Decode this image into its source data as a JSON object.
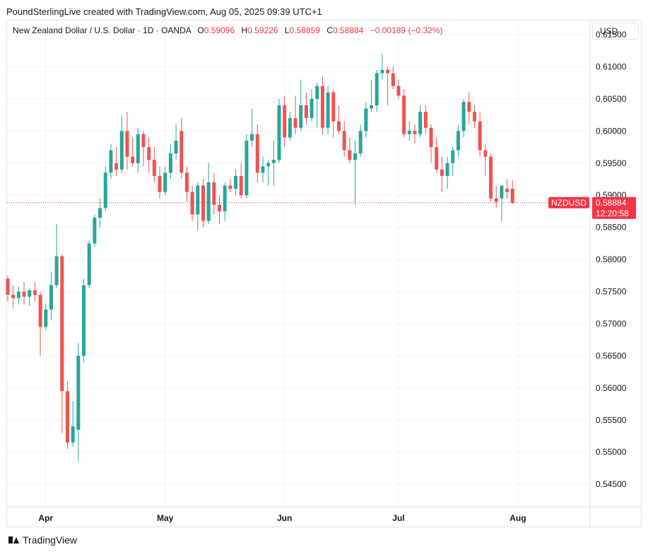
{
  "header": {
    "text": "PoundSterlingLive created with TradingView.com, Aug 05, 2025 09:39 UTC+1"
  },
  "legend": {
    "instrument": "New Zealand Dollar / U.S. Dollar · 1D · OANDA",
    "o_label": "O",
    "o_value": "0.59096",
    "h_label": "H",
    "h_value": "0.59226",
    "l_label": "L",
    "l_value": "0.58859",
    "c_label": "C",
    "c_value": "0.58884",
    "change": "−0.00189 (−0.32%)"
  },
  "currency_button": "USD",
  "footer": {
    "brand": "TradingView"
  },
  "colors": {
    "up": "#26a69a",
    "down": "#ef5350",
    "grid": "#f0f3fa",
    "axis_text": "#131722",
    "badge": "#f23645"
  },
  "chart_data": {
    "type": "candlestick",
    "symbol": "NZDUSD",
    "last_price": "0.58884",
    "countdown": "12:20:58",
    "y_axis": {
      "min": 0.5415,
      "max": 0.6172,
      "ticks": [
        "0.61500",
        "0.61000",
        "0.60500",
        "0.60000",
        "0.59500",
        "0.59000",
        "0.58500",
        "0.58000",
        "0.57500",
        "0.57000",
        "0.56500",
        "0.56000",
        "0.55500",
        "0.55000",
        "0.54500"
      ]
    },
    "x_axis": {
      "labels": [
        {
          "label": "Apr",
          "index": 7
        },
        {
          "label": "May",
          "index": 29
        },
        {
          "label": "Jun",
          "index": 51
        },
        {
          "label": "Jul",
          "index": 72
        },
        {
          "label": "Aug",
          "index": 94
        }
      ]
    },
    "ohlc": [
      [
        0.577,
        0.5775,
        0.5735,
        0.5745
      ],
      [
        0.5745,
        0.576,
        0.5725,
        0.574
      ],
      [
        0.574,
        0.5758,
        0.573,
        0.575
      ],
      [
        0.575,
        0.5765,
        0.573,
        0.5742
      ],
      [
        0.5742,
        0.5755,
        0.5728,
        0.5752
      ],
      [
        0.5752,
        0.5765,
        0.5735,
        0.5745
      ],
      [
        0.5745,
        0.575,
        0.565,
        0.5695
      ],
      [
        0.5695,
        0.573,
        0.569,
        0.5722
      ],
      [
        0.5722,
        0.578,
        0.5705,
        0.576
      ],
      [
        0.576,
        0.5855,
        0.5755,
        0.5805
      ],
      [
        0.5805,
        0.5808,
        0.553,
        0.5595
      ],
      [
        0.5595,
        0.561,
        0.5505,
        0.5515
      ],
      [
        0.5515,
        0.558,
        0.5508,
        0.554
      ],
      [
        0.5535,
        0.567,
        0.5485,
        0.565
      ],
      [
        0.565,
        0.577,
        0.564,
        0.576
      ],
      [
        0.576,
        0.583,
        0.5755,
        0.5825
      ],
      [
        0.5825,
        0.587,
        0.582,
        0.5865
      ],
      [
        0.5865,
        0.5895,
        0.585,
        0.588
      ],
      [
        0.588,
        0.5945,
        0.5875,
        0.5935
      ],
      [
        0.5935,
        0.598,
        0.5925,
        0.597
      ],
      [
        0.595,
        0.5975,
        0.593,
        0.594
      ],
      [
        0.594,
        0.6025,
        0.5935,
        0.6
      ],
      [
        0.6,
        0.603,
        0.594,
        0.596
      ],
      [
        0.596,
        0.599,
        0.5945,
        0.595
      ],
      [
        0.595,
        0.6005,
        0.5935,
        0.5995
      ],
      [
        0.5995,
        0.6,
        0.5945,
        0.5975
      ],
      [
        0.5975,
        0.599,
        0.5935,
        0.5955
      ],
      [
        0.5955,
        0.5975,
        0.592,
        0.593
      ],
      [
        0.593,
        0.5945,
        0.5895,
        0.5905
      ],
      [
        0.5905,
        0.5945,
        0.59,
        0.5935
      ],
      [
        0.5935,
        0.598,
        0.5925,
        0.5965
      ],
      [
        0.5965,
        0.601,
        0.5955,
        0.5985
      ],
      [
        0.6,
        0.602,
        0.5925,
        0.5935
      ],
      [
        0.5935,
        0.5945,
        0.589,
        0.5905
      ],
      [
        0.5905,
        0.5915,
        0.586,
        0.587
      ],
      [
        0.587,
        0.592,
        0.5845,
        0.5915
      ],
      [
        0.5915,
        0.5925,
        0.585,
        0.586
      ],
      [
        0.586,
        0.595,
        0.5855,
        0.592
      ],
      [
        0.592,
        0.5935,
        0.587,
        0.5885
      ],
      [
        0.5885,
        0.59,
        0.5855,
        0.5875
      ],
      [
        0.5875,
        0.592,
        0.586,
        0.5915
      ],
      [
        0.5915,
        0.5925,
        0.5905,
        0.591
      ],
      [
        0.591,
        0.594,
        0.59,
        0.593
      ],
      [
        0.593,
        0.595,
        0.5895,
        0.59
      ],
      [
        0.59,
        0.5995,
        0.5895,
        0.5985
      ],
      [
        0.5985,
        0.6035,
        0.5975,
        0.5995
      ],
      [
        0.5995,
        0.601,
        0.592,
        0.5935
      ],
      [
        0.5935,
        0.596,
        0.592,
        0.5945
      ],
      [
        0.5945,
        0.5955,
        0.5915,
        0.595
      ],
      [
        0.595,
        0.5985,
        0.5915,
        0.5955
      ],
      [
        0.5955,
        0.605,
        0.595,
        0.604
      ],
      [
        0.604,
        0.6055,
        0.5975,
        0.599
      ],
      [
        0.599,
        0.603,
        0.5985,
        0.602
      ],
      [
        0.602,
        0.6055,
        0.5995,
        0.6005
      ],
      [
        0.6005,
        0.608,
        0.6,
        0.604
      ],
      [
        0.604,
        0.606,
        0.601,
        0.602
      ],
      [
        0.602,
        0.6065,
        0.6015,
        0.605
      ],
      [
        0.605,
        0.6075,
        0.6005,
        0.607
      ],
      [
        0.607,
        0.6085,
        0.5995,
        0.6005
      ],
      [
        0.6005,
        0.607,
        0.5995,
        0.606
      ],
      [
        0.606,
        0.6065,
        0.599,
        0.6015
      ],
      [
        0.6015,
        0.604,
        0.5995,
        0.6
      ],
      [
        0.6,
        0.6015,
        0.596,
        0.597
      ],
      [
        0.597,
        0.599,
        0.595,
        0.5955
      ],
      [
        0.5955,
        0.5985,
        0.5885,
        0.5965
      ],
      [
        0.5965,
        0.601,
        0.596,
        0.6
      ],
      [
        0.6,
        0.6045,
        0.599,
        0.6035
      ],
      [
        0.6035,
        0.608,
        0.603,
        0.604
      ],
      [
        0.604,
        0.6095,
        0.603,
        0.609
      ],
      [
        0.609,
        0.612,
        0.608,
        0.6095
      ],
      [
        0.6095,
        0.61,
        0.604,
        0.609
      ],
      [
        0.609,
        0.61,
        0.6065,
        0.607
      ],
      [
        0.607,
        0.608,
        0.605,
        0.6055
      ],
      [
        0.6055,
        0.6065,
        0.599,
        0.5995
      ],
      [
        0.5995,
        0.6015,
        0.5985,
        0.6
      ],
      [
        0.6,
        0.601,
        0.598,
        0.5995
      ],
      [
        0.5995,
        0.604,
        0.599,
        0.603
      ],
      [
        0.603,
        0.604,
        0.5995,
        0.6005
      ],
      [
        0.6005,
        0.601,
        0.595,
        0.5975
      ],
      [
        0.5975,
        0.599,
        0.5935,
        0.594
      ],
      [
        0.594,
        0.596,
        0.5905,
        0.593
      ],
      [
        0.593,
        0.596,
        0.591,
        0.595
      ],
      [
        0.595,
        0.5975,
        0.593,
        0.597
      ],
      [
        0.597,
        0.601,
        0.596,
        0.6
      ],
      [
        0.6,
        0.605,
        0.599,
        0.6045
      ],
      [
        0.6045,
        0.606,
        0.601,
        0.603
      ],
      [
        0.603,
        0.604,
        0.6005,
        0.6015
      ],
      [
        0.6015,
        0.603,
        0.596,
        0.597
      ],
      [
        0.597,
        0.598,
        0.593,
        0.596
      ],
      [
        0.596,
        0.5965,
        0.589,
        0.5895
      ],
      [
        0.5895,
        0.5915,
        0.588,
        0.589
      ],
      [
        0.5895,
        0.5915,
        0.586,
        0.5915
      ],
      [
        0.591,
        0.5925,
        0.5895,
        0.5905
      ],
      [
        0.591,
        0.5923,
        0.5886,
        0.5888
      ]
    ]
  }
}
